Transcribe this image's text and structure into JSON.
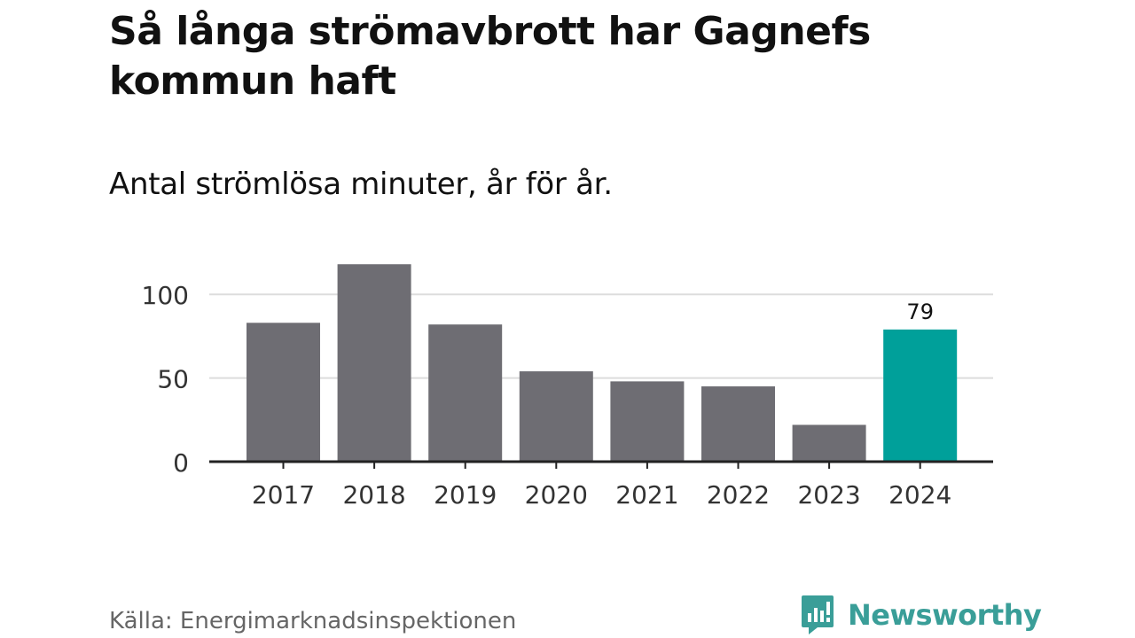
{
  "title": "Så långa strömavbrott har Gagnefs kommun haft",
  "subtitle": "Antal strömlösa minuter, år för år.",
  "source": "Källa: Energimarknadsinspektionen",
  "brand": {
    "name": "Newsworthy",
    "icon": "newsworthy-logo-icon",
    "color": "#3a9e98"
  },
  "colors": {
    "bar": "#6e6d73",
    "highlight": "#00a09a",
    "grid": "#dddddd",
    "axis": "#222222"
  },
  "chart_data": {
    "type": "bar",
    "categories": [
      "2017",
      "2018",
      "2019",
      "2020",
      "2021",
      "2022",
      "2023",
      "2024"
    ],
    "values": [
      83,
      118,
      82,
      54,
      48,
      45,
      22,
      79
    ],
    "highlight_index": 7,
    "data_labels": [
      {
        "index": 7,
        "text": "79"
      }
    ],
    "yticks": [
      0,
      50,
      100
    ],
    "ylim": [
      0,
      125
    ],
    "grid": true
  }
}
